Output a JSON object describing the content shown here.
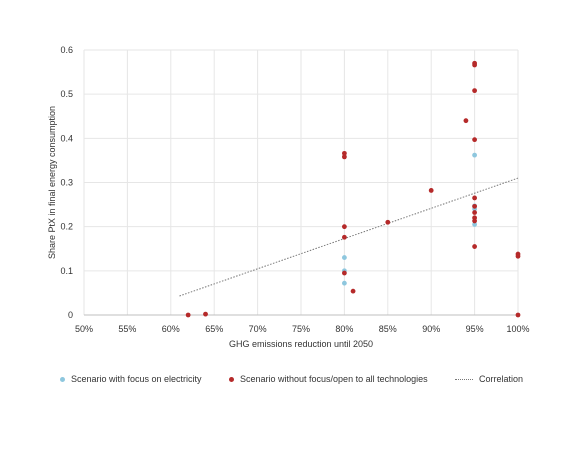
{
  "chart_data": {
    "type": "scatter",
    "xlabel": "GHG emissions reduction until 2050",
    "ylabel": "Share PtX in final energy consumption",
    "xlim": [
      0.5,
      1.0
    ],
    "ylim": [
      0,
      0.6
    ],
    "x_ticks": [
      0.5,
      0.55,
      0.6,
      0.65,
      0.7,
      0.75,
      0.8,
      0.85,
      0.9,
      0.95,
      1.0
    ],
    "x_tick_labels": [
      "50%",
      "55%",
      "60%",
      "65%",
      "70%",
      "75%",
      "80%",
      "85%",
      "90%",
      "95%",
      "100%"
    ],
    "y_ticks": [
      0,
      0.1,
      0.2,
      0.3,
      0.4,
      0.5,
      0.6
    ],
    "y_tick_labels": [
      "0",
      "0.1",
      "0.2",
      "0.3",
      "0.4",
      "0.5",
      "0.6"
    ],
    "grid": "vertical and horizontal",
    "legend_position": "bottom",
    "colors": {
      "electricity": "#8ec7de",
      "open": "#b52a2a",
      "correlation": "#777777",
      "grid": "#e6e6e6"
    },
    "series": [
      {
        "name": "Scenario with focus on electricity",
        "color": "#8ec7de",
        "points": [
          [
            0.8,
            0.13
          ],
          [
            0.8,
            0.1
          ],
          [
            0.8,
            0.072
          ],
          [
            0.95,
            0.362
          ],
          [
            0.95,
            0.247
          ],
          [
            0.95,
            0.24
          ],
          [
            0.95,
            0.205
          ]
        ]
      },
      {
        "name": "Scenario without focus/open to all technologies",
        "color": "#b52a2a",
        "points": [
          [
            0.62,
            0.0
          ],
          [
            0.64,
            0.002
          ],
          [
            0.8,
            0.366
          ],
          [
            0.8,
            0.358
          ],
          [
            0.8,
            0.2
          ],
          [
            0.8,
            0.176
          ],
          [
            0.8,
            0.095
          ],
          [
            0.81,
            0.054
          ],
          [
            0.85,
            0.21
          ],
          [
            0.9,
            0.282
          ],
          [
            0.94,
            0.44
          ],
          [
            0.95,
            0.57
          ],
          [
            0.95,
            0.566
          ],
          [
            0.95,
            0.508
          ],
          [
            0.95,
            0.397
          ],
          [
            0.95,
            0.265
          ],
          [
            0.95,
            0.246
          ],
          [
            0.95,
            0.232
          ],
          [
            0.95,
            0.22
          ],
          [
            0.95,
            0.213
          ],
          [
            0.95,
            0.155
          ],
          [
            1.0,
            0.138
          ],
          [
            1.0,
            0.133
          ],
          [
            1.0,
            0.0
          ]
        ]
      },
      {
        "name": "Correlation",
        "type": "line",
        "style": "dotted",
        "color": "#777777",
        "points": [
          [
            0.61,
            0.043
          ],
          [
            1.0,
            0.31
          ]
        ]
      }
    ]
  }
}
